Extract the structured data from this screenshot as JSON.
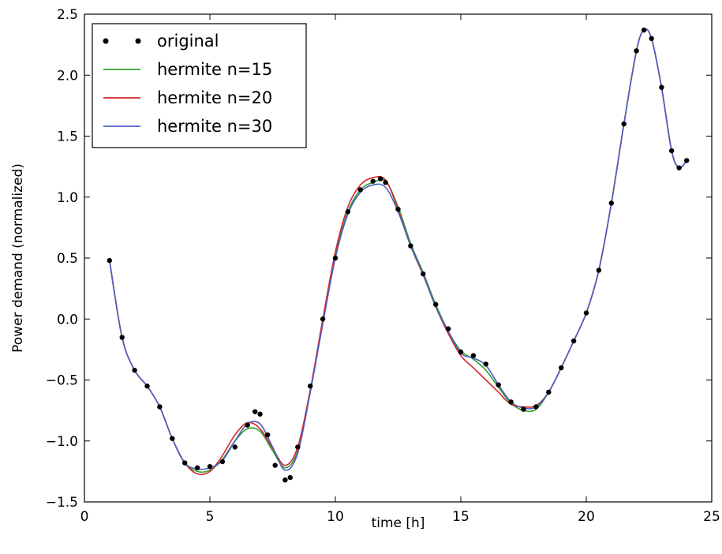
{
  "chart_data": {
    "type": "line",
    "xlabel": "time [h]",
    "ylabel": "Power demand (normalized)",
    "xlim": [
      0,
      25
    ],
    "ylim": [
      -1.5,
      2.5
    ],
    "grid": false,
    "legend_position": "top-left",
    "xticks": [
      0,
      5,
      10,
      15,
      20,
      25
    ],
    "xtick_labels": [
      "0",
      "5",
      "10",
      "15",
      "20",
      "25"
    ],
    "yticks": [
      -1.5,
      -1.0,
      -0.5,
      0.0,
      0.5,
      1.0,
      1.5,
      2.0,
      2.5
    ],
    "ytick_labels": [
      "−1.5",
      "−1.0",
      "−0.5",
      "0.0",
      "0.5",
      "1.0",
      "1.5",
      "2.0",
      "2.5"
    ],
    "series": [
      {
        "name": "original",
        "style": "dots",
        "color": "#000000",
        "x": [
          1.0,
          1.5,
          2.0,
          2.5,
          3.0,
          3.5,
          4.0,
          4.5,
          5.0,
          5.5,
          6.0,
          6.5,
          6.8,
          7.0,
          7.3,
          7.6,
          8.0,
          8.2,
          8.5,
          9.0,
          9.5,
          10.0,
          10.5,
          11.0,
          11.5,
          11.8,
          12.0,
          12.5,
          13.0,
          13.5,
          14.0,
          14.5,
          15.0,
          15.5,
          16.0,
          16.5,
          17.0,
          17.5,
          18.0,
          18.5,
          19.0,
          19.5,
          20.0,
          20.5,
          21.0,
          21.5,
          22.0,
          22.3,
          22.6,
          23.0,
          23.4,
          23.7,
          24.0
        ],
        "values": [
          0.48,
          -0.15,
          -0.42,
          -0.55,
          -0.72,
          -0.98,
          -1.18,
          -1.22,
          -1.21,
          -1.17,
          -1.05,
          -0.87,
          -0.76,
          -0.78,
          -0.95,
          -1.2,
          -1.32,
          -1.3,
          -1.05,
          -0.55,
          0.0,
          0.5,
          0.88,
          1.06,
          1.13,
          1.15,
          1.12,
          0.9,
          0.6,
          0.37,
          0.12,
          -0.08,
          -0.27,
          -0.3,
          -0.37,
          -0.54,
          -0.68,
          -0.74,
          -0.72,
          -0.6,
          -0.4,
          -0.18,
          0.05,
          0.4,
          0.95,
          1.6,
          2.2,
          2.37,
          2.3,
          1.9,
          1.38,
          1.24,
          1.3
        ]
      },
      {
        "name": "hermite n=15",
        "style": "line",
        "color": "#2ca02c",
        "x": [
          1.0,
          1.5,
          2.0,
          2.5,
          3.0,
          3.5,
          4.0,
          4.5,
          5.0,
          5.5,
          6.0,
          6.5,
          7.0,
          7.5,
          8.0,
          8.5,
          9.0,
          9.5,
          10.0,
          10.5,
          11.0,
          11.5,
          12.0,
          12.5,
          13.0,
          13.5,
          14.0,
          14.5,
          15.0,
          15.5,
          16.0,
          16.5,
          17.0,
          17.5,
          18.0,
          18.5,
          19.0,
          19.5,
          20.0,
          20.5,
          21.0,
          21.5,
          22.0,
          22.3,
          22.6,
          23.0,
          23.4,
          23.7,
          24.0
        ],
        "values": [
          0.48,
          -0.15,
          -0.42,
          -0.55,
          -0.72,
          -0.98,
          -1.18,
          -1.25,
          -1.24,
          -1.15,
          -1.0,
          -0.9,
          -0.92,
          -1.08,
          -1.22,
          -1.08,
          -0.6,
          -0.02,
          0.52,
          0.88,
          1.06,
          1.12,
          1.13,
          0.92,
          0.62,
          0.38,
          0.12,
          -0.1,
          -0.26,
          -0.33,
          -0.42,
          -0.56,
          -0.69,
          -0.75,
          -0.74,
          -0.6,
          -0.4,
          -0.18,
          0.05,
          0.4,
          0.95,
          1.6,
          2.2,
          2.37,
          2.3,
          1.9,
          1.38,
          1.24,
          1.3
        ]
      },
      {
        "name": "hermite n=20",
        "style": "line",
        "color": "#d62728",
        "x": [
          1.0,
          1.5,
          2.0,
          2.5,
          3.0,
          3.5,
          4.0,
          4.5,
          5.0,
          5.5,
          6.0,
          6.5,
          7.0,
          7.5,
          8.0,
          8.5,
          9.0,
          9.5,
          10.0,
          10.5,
          11.0,
          11.5,
          12.0,
          12.5,
          13.0,
          13.5,
          14.0,
          14.5,
          15.0,
          15.5,
          16.0,
          16.5,
          17.0,
          17.5,
          18.0,
          18.5,
          19.0,
          19.5,
          20.0,
          20.5,
          21.0,
          21.5,
          22.0,
          22.3,
          22.6,
          23.0,
          23.4,
          23.7,
          24.0
        ],
        "values": [
          0.48,
          -0.15,
          -0.42,
          -0.55,
          -0.72,
          -0.98,
          -1.18,
          -1.27,
          -1.25,
          -1.12,
          -0.95,
          -0.85,
          -0.9,
          -1.06,
          -1.2,
          -1.05,
          -0.58,
          0.0,
          0.55,
          0.92,
          1.1,
          1.16,
          1.14,
          0.9,
          0.6,
          0.36,
          0.1,
          -0.12,
          -0.3,
          -0.4,
          -0.5,
          -0.6,
          -0.7,
          -0.72,
          -0.71,
          -0.6,
          -0.4,
          -0.18,
          0.05,
          0.4,
          0.95,
          1.6,
          2.2,
          2.37,
          2.3,
          1.9,
          1.38,
          1.24,
          1.3
        ]
      },
      {
        "name": "hermite n=30",
        "style": "line",
        "color": "#4c5fc2",
        "x": [
          1.0,
          1.5,
          2.0,
          2.5,
          3.0,
          3.5,
          4.0,
          4.5,
          5.0,
          5.5,
          6.0,
          6.5,
          7.0,
          7.5,
          8.0,
          8.5,
          9.0,
          9.5,
          10.0,
          10.5,
          11.0,
          11.5,
          12.0,
          12.5,
          13.0,
          13.5,
          14.0,
          14.5,
          15.0,
          15.5,
          16.0,
          16.5,
          17.0,
          17.5,
          18.0,
          18.5,
          19.0,
          19.5,
          20.0,
          20.5,
          21.0,
          21.5,
          22.0,
          22.3,
          22.6,
          23.0,
          23.4,
          23.7,
          24.0
        ],
        "values": [
          0.48,
          -0.15,
          -0.42,
          -0.55,
          -0.72,
          -0.98,
          -1.18,
          -1.23,
          -1.22,
          -1.16,
          -1.0,
          -0.86,
          -0.86,
          -1.05,
          -1.24,
          -1.1,
          -0.6,
          -0.04,
          0.5,
          0.86,
          1.04,
          1.1,
          1.08,
          0.88,
          0.6,
          0.37,
          0.1,
          -0.1,
          -0.28,
          -0.32,
          -0.38,
          -0.54,
          -0.68,
          -0.73,
          -0.72,
          -0.6,
          -0.4,
          -0.18,
          0.05,
          0.4,
          0.95,
          1.6,
          2.2,
          2.37,
          2.3,
          1.9,
          1.38,
          1.24,
          1.3
        ]
      }
    ]
  }
}
